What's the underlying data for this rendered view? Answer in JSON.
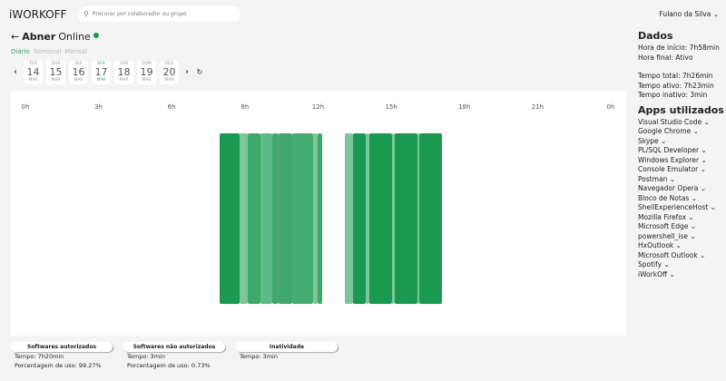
{
  "app": {
    "logo": "iWORKOFF",
    "search_placeholder": "Procurar por colaborador ou grupo",
    "user": "Fulano da Silva"
  },
  "header": {
    "back_icon": "arrow-left-icon",
    "name": "Abner",
    "status": "Online",
    "status_color": "#1a9a50"
  },
  "tabs": [
    {
      "label": "Diário",
      "active": true
    },
    {
      "label": "Semanal"
    },
    {
      "label": "Mensal"
    }
  ],
  "days": [
    {
      "w": "TER",
      "n": "14",
      "m": "MAR"
    },
    {
      "w": "QUA",
      "n": "15",
      "m": "MAR"
    },
    {
      "w": "QUI",
      "n": "16",
      "m": "MAR"
    },
    {
      "w": "SEX",
      "n": "17",
      "m": "MAR",
      "selected": true
    },
    {
      "w": "SÁB",
      "n": "18",
      "m": "MAR"
    },
    {
      "w": "DOM",
      "n": "19",
      "m": "MAR"
    },
    {
      "w": "SEG",
      "n": "20",
      "m": "MAR"
    }
  ],
  "timeline": {
    "hours": [
      "0h",
      "3h",
      "6h",
      "9h",
      "12h",
      "15h",
      "18h",
      "21h",
      "0h"
    ],
    "segments": [
      [
        7.96,
        8.78,
        "#1a9a50"
      ],
      [
        8.78,
        9.12,
        "#7cc79a"
      ],
      [
        9.12,
        9.64,
        "#3daa6a"
      ],
      [
        9.64,
        10.12,
        "#5db985"
      ],
      [
        10.12,
        10.34,
        "#3daa6a"
      ],
      [
        10.34,
        10.38,
        "#6b8f78"
      ],
      [
        10.38,
        10.94,
        "#3daa6a"
      ],
      [
        10.94,
        11.8,
        "#45ac70"
      ],
      [
        11.8,
        11.98,
        "#7cc79a"
      ],
      [
        11.98,
        12.17,
        "#3daa6a"
      ],
      [
        13.1,
        13.43,
        "#7cc79a"
      ],
      [
        13.43,
        13.95,
        "#1a9a50"
      ],
      [
        13.95,
        14.1,
        "#7cc79a"
      ],
      [
        14.1,
        15.03,
        "#1a9a50"
      ],
      [
        15.03,
        15.14,
        "#7cc79a"
      ],
      [
        15.14,
        16.07,
        "#1a9a50"
      ],
      [
        16.07,
        16.15,
        "#7cc79a"
      ],
      [
        16.15,
        17.08,
        "#1a9a50"
      ]
    ]
  },
  "cards": [
    {
      "title": "Softwares autorizados",
      "lines": [
        "Tempo: 7h20min",
        "Porcentagem de uso: 99.27%"
      ]
    },
    {
      "title": "Softwares não autorizados",
      "lines": [
        "Tempo: 3min",
        "Porcentagem de uso: 0.73%"
      ]
    },
    {
      "title": "Inatividade",
      "lines": [
        "Tempo: 3min"
      ]
    }
  ],
  "dados": {
    "title": "Dados",
    "inicio": "Hora de início: 7h58min",
    "final": "Hora final: Ativo",
    "total": "Tempo total: 7h26min",
    "ativo": "Tempo ativo: 7h23min",
    "inativo": "Tempo inativo: 3min"
  },
  "apps": {
    "title": "Apps utilizados",
    "items": [
      "Visual Studio Code",
      "Google Chrome",
      "Skype",
      "PL/SQL Developer",
      "Windows Explorer",
      "Console Emulator",
      "Postman",
      "Navegador Opera",
      "Bloco de Notas",
      "ShellExperienceHost",
      "Mozilla Firefox",
      "Microsoft Edge",
      "powershell_ise",
      "HxOutlook",
      "Microsoft Outlook",
      "Spotify",
      "iWorkOff"
    ]
  }
}
